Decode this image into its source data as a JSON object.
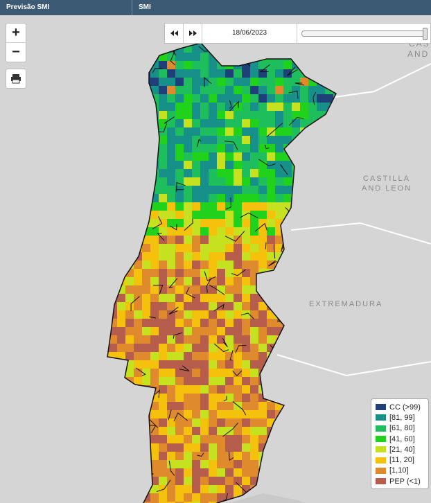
{
  "header": {
    "left": "Previsão SMI",
    "right": "SMI"
  },
  "controls": {
    "zoom_in": "+",
    "zoom_out": "−"
  },
  "timeline": {
    "date": "18/06/2023"
  },
  "map_labels": [
    "CAS",
    "AND",
    "CASTILLA",
    "AND LEON",
    "EXTREMADURA"
  ],
  "legend": [
    {
      "label": "CC (>99)",
      "color": "#1f3f78"
    },
    {
      "label": "[81, 99]",
      "color": "#17908a"
    },
    {
      "label": "[61, 80]",
      "color": "#1fbe5c"
    },
    {
      "label": "[41, 60]",
      "color": "#20d21c"
    },
    {
      "label": "[21, 40]",
      "color": "#c6e11f"
    },
    {
      "label": "[11, 20]",
      "color": "#f4c10d"
    },
    {
      "label": "[1,10]",
      "color": "#df8a2c"
    },
    {
      "label": "PEP (<1)",
      "color": "#b65d4b"
    }
  ]
}
